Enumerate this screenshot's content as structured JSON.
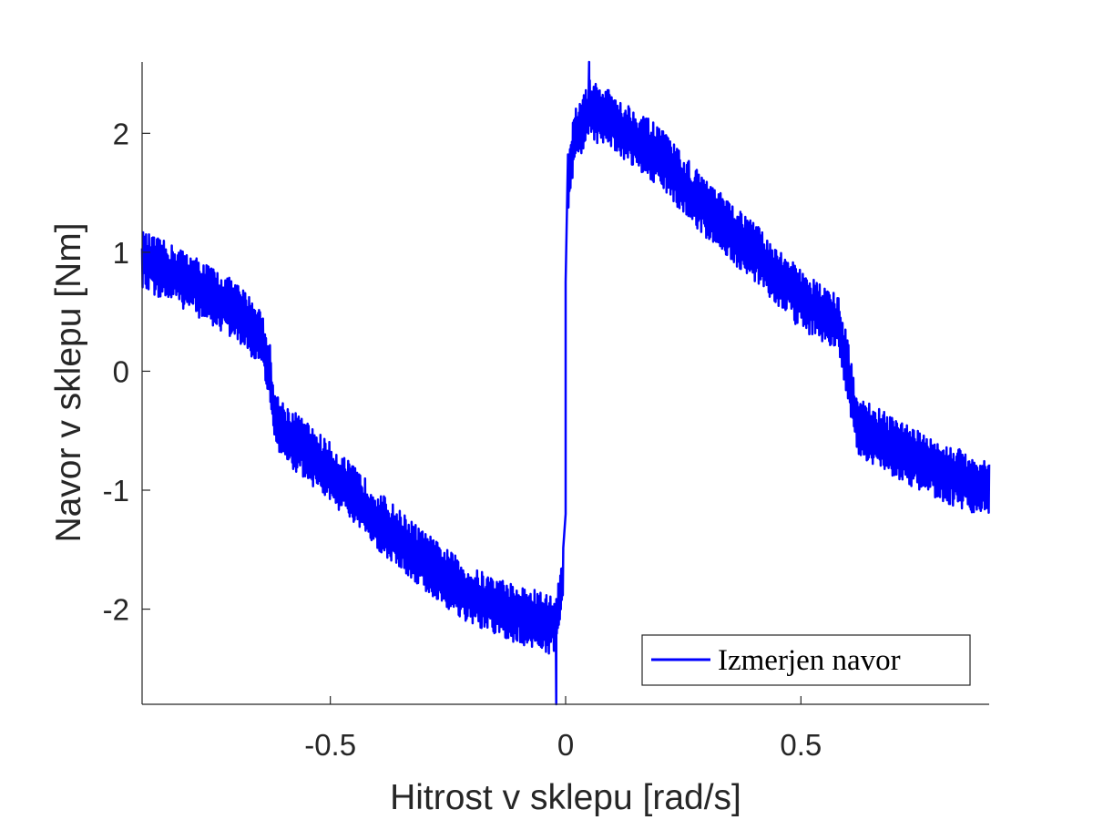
{
  "chart_data": {
    "type": "line",
    "xlabel": "Hitrost v sklepu [rad/s]",
    "ylabel": "Navor v sklepu [Nm]",
    "xlim": [
      -0.9,
      0.9
    ],
    "ylim": [
      -2.8,
      2.6
    ],
    "x_ticks": [
      -0.5,
      0,
      0.5
    ],
    "x_tick_labels": [
      "-0.5",
      "0",
      "0.5"
    ],
    "y_ticks": [
      -2,
      -1,
      0,
      1,
      2
    ],
    "y_tick_labels": [
      "-2",
      "-1",
      "0",
      "1",
      "2"
    ],
    "grid": false,
    "legend_position": "bottom-right",
    "series": [
      {
        "name": "Izmerjen navor",
        "color": "#0000ff",
        "envelope": {
          "x": [
            -0.9,
            -0.8,
            -0.7,
            -0.65,
            -0.63,
            -0.62,
            -0.6,
            -0.5,
            -0.4,
            -0.3,
            -0.2,
            -0.1,
            -0.05,
            -0.02,
            -0.005,
            0.005,
            0.02,
            0.05,
            0.1,
            0.2,
            0.3,
            0.4,
            0.5,
            0.58,
            0.6,
            0.62,
            0.7,
            0.8,
            0.9
          ],
          "y": [
            0.93,
            0.75,
            0.5,
            0.3,
            0.05,
            -0.4,
            -0.5,
            -0.85,
            -1.25,
            -1.6,
            -1.9,
            -2.05,
            -2.1,
            -2.15,
            -1.7,
            1.6,
            1.95,
            2.2,
            2.1,
            1.8,
            1.35,
            1.0,
            0.6,
            0.4,
            0.0,
            -0.45,
            -0.65,
            -0.85,
            -1.0
          ]
        },
        "noise_amplitude_nm": 0.25,
        "zero_crossing_spikes": {
          "negative_branch": {
            "x": [
              -0.02,
              -0.01,
              0.0
            ],
            "y": [
              -2.8,
              -1.9,
              -1.2
            ]
          },
          "positive_branch": {
            "x": [
              0.0,
              0.01,
              0.05
            ],
            "y": [
              0.75,
              1.7,
              2.6
            ]
          }
        }
      }
    ],
    "legend": [
      {
        "label": "Izmerjen navor",
        "color": "#0000ff"
      }
    ]
  }
}
